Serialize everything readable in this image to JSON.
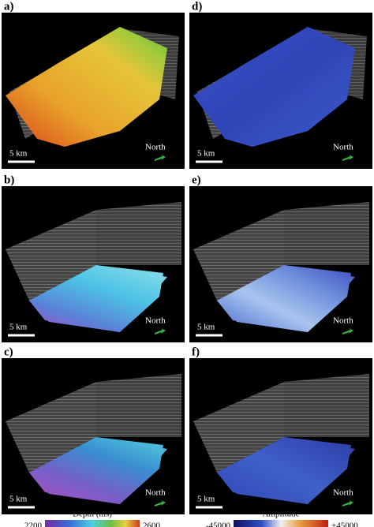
{
  "panels": [
    {
      "label": "a)",
      "scale": "5 km",
      "north": "North"
    },
    {
      "label": "d)",
      "scale": "5 km",
      "north": "North"
    },
    {
      "label": "b)",
      "scale": "5 km",
      "north": "North"
    },
    {
      "label": "e)",
      "scale": "5 km",
      "north": "North"
    },
    {
      "label": "c)",
      "scale": "5 km",
      "north": "North"
    },
    {
      "label": "f)",
      "scale": "5 km",
      "north": "North"
    }
  ],
  "colorbars": [
    {
      "title": "Depth (ms)",
      "min": "2200",
      "max": "2600"
    },
    {
      "title": "Amplitude",
      "min": "-45000",
      "max": "+45000"
    }
  ]
}
